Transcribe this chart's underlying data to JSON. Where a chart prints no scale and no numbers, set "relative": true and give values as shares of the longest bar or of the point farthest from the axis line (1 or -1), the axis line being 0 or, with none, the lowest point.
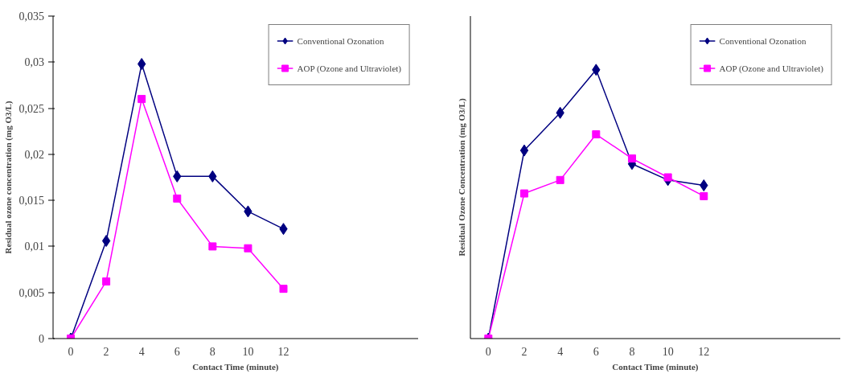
{
  "chart_data": [
    {
      "type": "line",
      "xlabel": "Contact Time (minute)",
      "ylabel": "Residual ozone concentration (mg O3/L)",
      "categories": [
        "0",
        "2",
        "4",
        "6",
        "8",
        "10",
        "12"
      ],
      "series": [
        {
          "name": "Conventional Ozonation",
          "color": "#000080",
          "marker": "diamond",
          "values": [
            0,
            0.0106,
            0.0298,
            0.0176,
            0.0176,
            0.0138,
            0.0119
          ]
        },
        {
          "name": "AOP (Ozone and Ultraviolet)",
          "color": "#ff00ff",
          "marker": "square",
          "values": [
            0,
            0.0062,
            0.026,
            0.0152,
            0.01,
            0.0098,
            0.0054
          ]
        }
      ],
      "ylim": [
        0,
        0.035
      ],
      "yticks": [
        0,
        {
          "value": 0.005,
          "label": "0,005"
        },
        {
          "value": 0.01,
          "label": "0,01"
        },
        {
          "value": 0.015,
          "label": "0,015"
        },
        {
          "value": 0.02,
          "label": "0,02"
        },
        {
          "value": 0.025,
          "label": "0,025"
        },
        {
          "value": 0.03,
          "label": "0,03"
        },
        {
          "value": 0.035,
          "label": "0,035"
        }
      ],
      "grid": false,
      "legend": "top right"
    },
    {
      "type": "line",
      "xlabel": "Contact Time (minute)",
      "ylabel": "Residual Ozone Concentration (mg O3/L)",
      "categories": [
        "0",
        "2",
        "4",
        "6",
        "8",
        "10",
        "12"
      ],
      "relative": true,
      "series": [
        {
          "name": "Conventional Ozonation",
          "color": "#000080",
          "marker": "diamond",
          "values": [
            0,
            0.7,
            0.84,
            1,
            0.65,
            0.59,
            0.57
          ]
        },
        {
          "name": "AOP (Ozone and Ultraviolet)",
          "color": "#ff00ff",
          "marker": "square",
          "values": [
            0,
            0.54,
            0.59,
            0.76,
            0.67,
            0.6,
            0.53
          ]
        }
      ],
      "grid": false,
      "legend": "top right"
    }
  ]
}
